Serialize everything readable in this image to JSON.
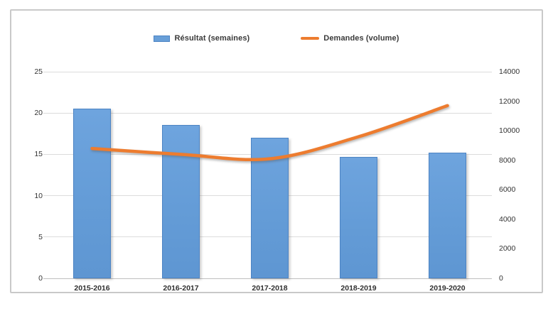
{
  "chart_data": {
    "type": "combo-bar-line",
    "title": "",
    "categories": [
      "2015-2016",
      "2016-2017",
      "2017-2018",
      "2018-2019",
      "2019-2020"
    ],
    "series": [
      {
        "name": "Résultat (semaines)",
        "type": "bar",
        "axis": "left",
        "values": [
          20.5,
          18.6,
          17.0,
          14.7,
          15.2
        ],
        "color": "#689fd8",
        "border_color": "#4d84c4"
      },
      {
        "name": "Demandes (volume)",
        "type": "line",
        "axis": "right",
        "values": [
          8800,
          8400,
          8100,
          9600,
          11700
        ],
        "color": "#ed7c2f"
      }
    ],
    "left_axis": {
      "min": 0,
      "max": 25,
      "step": 5,
      "ticks": [
        0,
        5,
        10,
        15,
        20,
        25
      ]
    },
    "right_axis": {
      "min": 0,
      "max": 14000,
      "step": 2000,
      "ticks": [
        0,
        2000,
        4000,
        6000,
        8000,
        10000,
        12000,
        14000
      ]
    },
    "grid": "horizontal-left-axis-only",
    "legend_position": "top",
    "colors": {
      "gridline": "#dcdcdc",
      "axis_line": "#bfbfbf",
      "frame_border": "#c9c9c9",
      "text": "#333333"
    }
  }
}
